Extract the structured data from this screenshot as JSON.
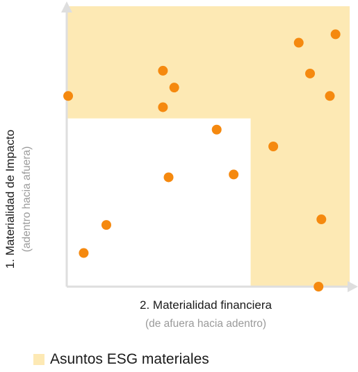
{
  "colors": {
    "material_zone": "#fde9b4",
    "point": "#f5890f",
    "axis": "#dedede",
    "text": "#1a1a1a",
    "subtext": "#9a9a9a"
  },
  "chart_data": {
    "type": "scatter",
    "x_axis": {
      "label": "2. Materialidad financiera",
      "sublabel": "(de afuera hacia adentro)",
      "range": [
        0,
        100
      ]
    },
    "y_axis": {
      "label": "1. Materialidad de Impacto",
      "sublabel": "(adentro hacia afuera)",
      "range": [
        0,
        100
      ]
    },
    "grid": false,
    "legend_position": "bottom-left",
    "regions": [
      {
        "name": "Asuntos ESG materiales",
        "shape": "L-shape",
        "x_threshold": 65,
        "y_threshold": 60
      }
    ],
    "points": [
      {
        "x": 0.5,
        "y": 68
      },
      {
        "x": 6,
        "y": 12
      },
      {
        "x": 14,
        "y": 22
      },
      {
        "x": 34,
        "y": 77
      },
      {
        "x": 38,
        "y": 71
      },
      {
        "x": 34,
        "y": 64
      },
      {
        "x": 36,
        "y": 39
      },
      {
        "x": 53,
        "y": 56
      },
      {
        "x": 59,
        "y": 40
      },
      {
        "x": 73,
        "y": 50
      },
      {
        "x": 82,
        "y": 87
      },
      {
        "x": 86,
        "y": 76
      },
      {
        "x": 95,
        "y": 90
      },
      {
        "x": 93,
        "y": 68
      },
      {
        "x": 90,
        "y": 24
      },
      {
        "x": 89,
        "y": 0
      }
    ]
  }
}
